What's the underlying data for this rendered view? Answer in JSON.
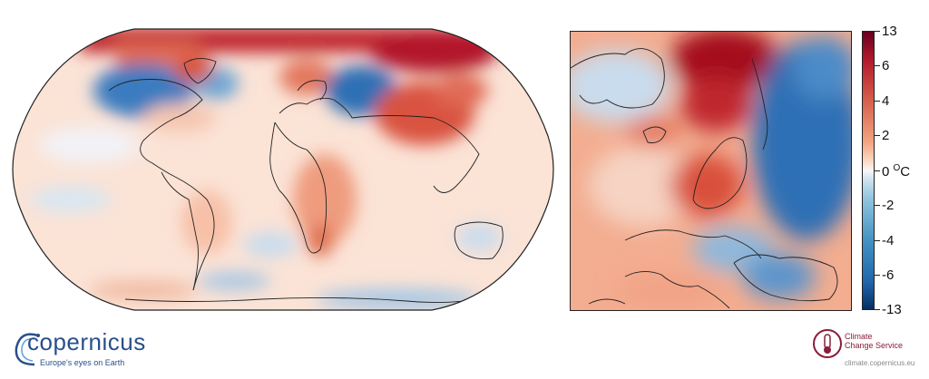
{
  "colorbar": {
    "ticks": [
      "13",
      "6",
      "4",
      "2",
      "0",
      "-2",
      "-4",
      "-6",
      "-13"
    ],
    "unit": "°C",
    "unit_base": "0 ",
    "unit_deg": "O",
    "unit_c": "C",
    "colors": [
      "#67001f",
      "#b2182b",
      "#d6604d",
      "#f4a582",
      "#fddbc7",
      "#f7f7f7",
      "#d1e5f0",
      "#92c5de",
      "#4393c3",
      "#2166ac",
      "#053061"
    ]
  },
  "logo_left": {
    "name": "copernicus",
    "tagline": "Europe's eyes on Earth"
  },
  "logo_right": {
    "line1": "Climate",
    "line2": "Change Service",
    "url": "climate.copernicus.eu"
  }
}
